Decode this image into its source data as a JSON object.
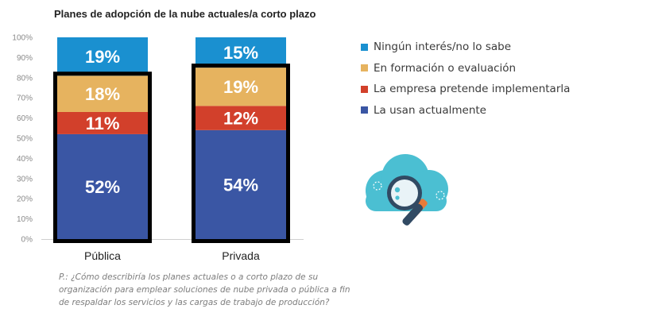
{
  "chart_data": {
    "type": "bar",
    "stacked": true,
    "title": "Planes de adopción de la nube actuales/a corto plazo",
    "categories": [
      "Pública",
      "Privada"
    ],
    "ylim": [
      0,
      100
    ],
    "y_ticks": [
      "0%",
      "10%",
      "20%",
      "30%",
      "40%",
      "50%",
      "60%",
      "70%",
      "80%",
      "90%",
      "100%"
    ],
    "series": [
      {
        "name": "La usan actualmente",
        "color": "#3a56a4",
        "values": [
          52,
          54
        ],
        "labels": [
          "52%",
          "54%"
        ]
      },
      {
        "name": "La empresa pretende implementarla",
        "color": "#d2402b",
        "values": [
          11,
          12
        ],
        "labels": [
          "11%",
          "12%"
        ]
      },
      {
        "name": "En formación o evaluación",
        "color": "#e6b35f",
        "values": [
          18,
          19
        ],
        "labels": [
          "18%",
          "19%"
        ]
      },
      {
        "name": "Ningún interés/no lo sabe",
        "color": "#1a90d0",
        "values": [
          19,
          15
        ],
        "labels": [
          "19%",
          "15%"
        ]
      }
    ],
    "legend": {
      "placement": "right",
      "items": [
        {
          "label": "Ningún interés/no lo sabe",
          "color": "#1a90d0"
        },
        {
          "label": "En formación o evaluación",
          "color": "#e6b35f"
        },
        {
          "label": "La empresa pretende implementarla",
          "color": "#d2402b"
        },
        {
          "label": "La usan actualmente",
          "color": "#3a56a4"
        }
      ]
    },
    "grid": false
  },
  "question": "P.: ¿Cómo describiría los planes actuales o a corto plazo de su organización para emplear soluciones de nube privada o pública a fin de respaldar los servicios y las cargas de trabajo de producción?",
  "icon": "cloud-magnifier-icon"
}
